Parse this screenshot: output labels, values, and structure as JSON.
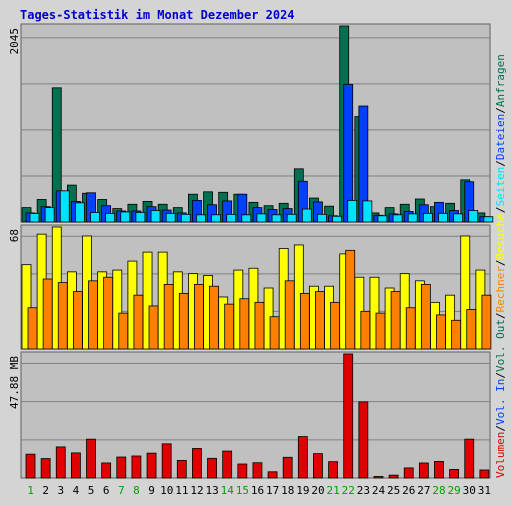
{
  "title": "Tages-Statistik im Monat Dezember 2024",
  "colors": {
    "background": "#d4d4d4",
    "plot_bg": "#c0c0c0",
    "gridline": "#808080",
    "title": "#0000cc",
    "anfragen": "#007050",
    "dateien": "#0040ff",
    "seiten": "#00e0ff",
    "besuche": "#ffff00",
    "rechner": "#ff8000",
    "volumen": "#e00000",
    "weekend_label": "#00a000",
    "weekday_label": "#000000"
  },
  "chart_data": [
    {
      "type": "bar",
      "panel": "hits",
      "ymax_label": "2045",
      "ylim": [
        0,
        2045
      ],
      "categories": [
        "1",
        "2",
        "3",
        "4",
        "5",
        "6",
        "7",
        "8",
        "9",
        "10",
        "11",
        "12",
        "13",
        "14",
        "15",
        "16",
        "17",
        "18",
        "19",
        "20",
        "21",
        "22",
        "23",
        "24",
        "25",
        "26",
        "27",
        "28",
        "29",
        "30",
        "31"
      ],
      "weekend": [
        "1",
        "7",
        "8",
        "14",
        "15",
        "21",
        "22",
        "28",
        "29"
      ],
      "series": [
        {
          "name": "Anfragen",
          "color_key": "anfragen",
          "values": [
            150,
            235,
            1400,
            385,
            300,
            235,
            140,
            185,
            215,
            185,
            150,
            290,
            315,
            310,
            290,
            205,
            170,
            195,
            555,
            250,
            165,
            2045,
            1100,
            95,
            150,
            185,
            240,
            160,
            195,
            440,
            95
          ]
        },
        {
          "name": "Dateien",
          "color_key": "dateien",
          "values": [
            95,
            160,
            325,
            215,
            305,
            170,
            115,
            115,
            160,
            125,
            95,
            225,
            180,
            220,
            290,
            150,
            130,
            140,
            425,
            210,
            65,
            1435,
            1210,
            70,
            85,
            110,
            180,
            205,
            120,
            420,
            55
          ]
        },
        {
          "name": "Seiten",
          "color_key": "seiten",
          "values": [
            90,
            150,
            325,
            200,
            100,
            90,
            105,
            100,
            120,
            90,
            80,
            75,
            75,
            80,
            75,
            85,
            75,
            80,
            135,
            80,
            60,
            225,
            220,
            65,
            75,
            85,
            90,
            90,
            85,
            120,
            55
          ]
        }
      ]
    },
    {
      "type": "bar",
      "panel": "visits",
      "ymax_label": "68",
      "ylim": [
        0,
        68
      ],
      "categories": [
        "1",
        "2",
        "3",
        "4",
        "5",
        "6",
        "7",
        "8",
        "9",
        "10",
        "11",
        "12",
        "13",
        "14",
        "15",
        "16",
        "17",
        "18",
        "19",
        "20",
        "21",
        "22",
        "23",
        "24",
        "25",
        "26",
        "27",
        "28",
        "29",
        "30",
        "31"
      ],
      "series": [
        {
          "name": "Besuche",
          "color_key": "besuche",
          "values": [
            47,
            64,
            68,
            43,
            63,
            43,
            44,
            49,
            54,
            54,
            43,
            42,
            41,
            29,
            44,
            45,
            34,
            56,
            58,
            35,
            35,
            53,
            40,
            40,
            34,
            42,
            38,
            26,
            30,
            63,
            44
          ]
        },
        {
          "name": "Rechner",
          "color_key": "rechner",
          "values": [
            23,
            39,
            37,
            32,
            38,
            40,
            20,
            30,
            24,
            36,
            31,
            36,
            35,
            25,
            28,
            26,
            18,
            38,
            31,
            32,
            26,
            55,
            21,
            20,
            32,
            23,
            36,
            19,
            16,
            22,
            30
          ]
        }
      ]
    },
    {
      "type": "bar",
      "panel": "volume",
      "ymax_label": "47.88 MB",
      "ylim": [
        0,
        47.88
      ],
      "categories": [
        "1",
        "2",
        "3",
        "4",
        "5",
        "6",
        "7",
        "8",
        "9",
        "10",
        "11",
        "12",
        "13",
        "14",
        "15",
        "16",
        "17",
        "18",
        "19",
        "20",
        "21",
        "22",
        "23",
        "24",
        "25",
        "26",
        "27",
        "28",
        "29",
        "30",
        "31"
      ],
      "series": [
        {
          "name": "Volumen",
          "color_key": "volumen",
          "values": [
            9.2,
            7.5,
            12,
            9.7,
            15,
            5.8,
            8.1,
            8.5,
            9.6,
            13.2,
            6.8,
            11.4,
            7.6,
            10.4,
            5.4,
            5.9,
            2.4,
            8,
            16,
            9.4,
            6.3,
            47.88,
            29.4,
            0.6,
            1.1,
            3.9,
            5.8,
            6.4,
            3.3,
            15,
            3.1
          ]
        }
      ]
    }
  ],
  "right_legend": [
    {
      "text": "Volumen",
      "color_key": "volumen"
    },
    {
      "text": "/",
      "color_key": "weekday_label"
    },
    {
      "text": "Vol. In",
      "color_key": "dateien"
    },
    {
      "text": "/",
      "color_key": "weekday_label"
    },
    {
      "text": "Vol. Out",
      "color_key": "anfragen"
    },
    {
      "text": "/",
      "color_key": "weekday_label"
    },
    {
      "text": "Rechner",
      "color_key": "rechner"
    },
    {
      "text": "/",
      "color_key": "weekday_label"
    },
    {
      "text": "Besuche",
      "color_key": "besuche"
    },
    {
      "text": "/",
      "color_key": "weekday_label"
    },
    {
      "text": "Seiten",
      "color_key": "seiten"
    },
    {
      "text": "/",
      "color_key": "weekday_label"
    },
    {
      "text": "Dateien",
      "color_key": "dateien"
    },
    {
      "text": "/",
      "color_key": "weekday_label"
    },
    {
      "text": "Anfragen",
      "color_key": "anfragen"
    }
  ]
}
